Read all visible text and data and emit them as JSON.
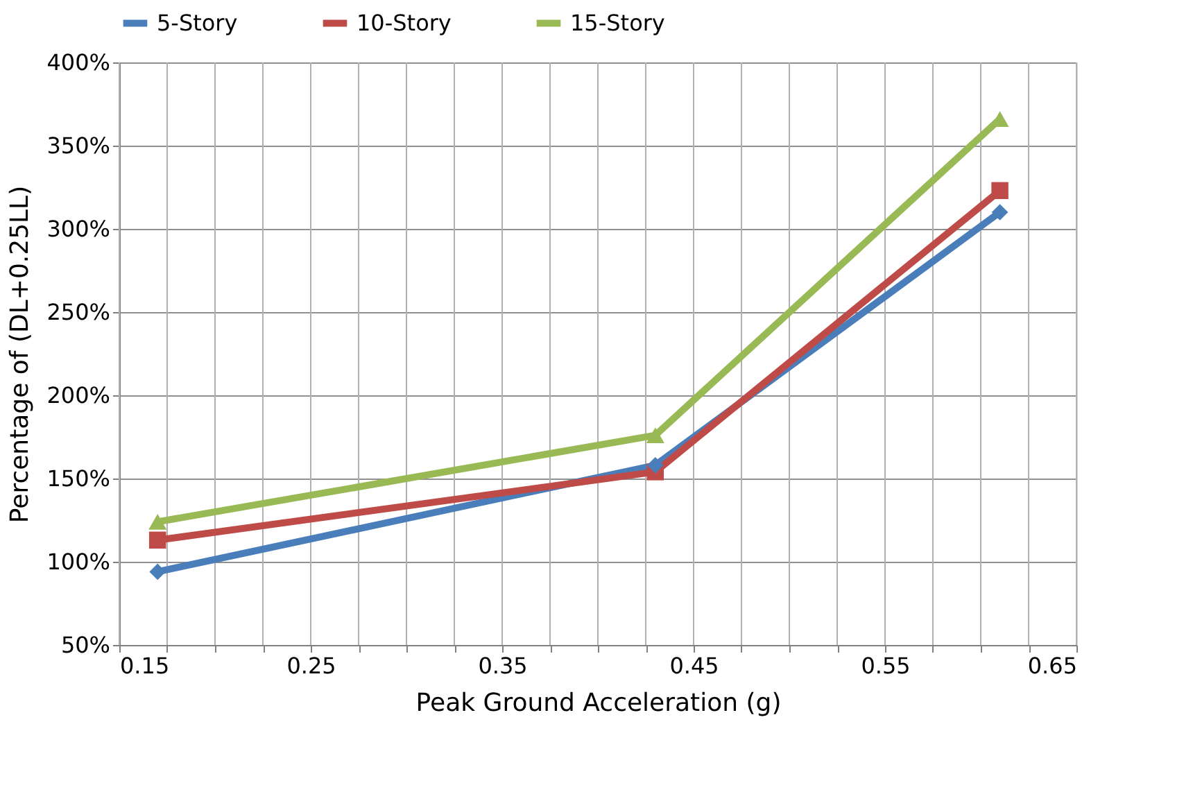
{
  "chart_data": {
    "type": "line",
    "xlabel": "Peak Ground Acceleration (g)",
    "ylabel": "Percentage of (DL+0.25LL)",
    "x": [
      0.17,
      0.43,
      0.61
    ],
    "series": [
      {
        "name": "5-Story",
        "color": "#4a7ebb",
        "marker": "diamond",
        "values": [
          94,
          158,
          310
        ]
      },
      {
        "name": "10-Story",
        "color": "#be4b48",
        "marker": "square",
        "values": [
          113,
          154,
          323
        ]
      },
      {
        "name": "15-Story",
        "color": "#98b954",
        "marker": "triangle",
        "values": [
          124,
          176,
          366
        ]
      }
    ],
    "xlim": [
      0.15,
      0.65
    ],
    "xticks": [
      0.15,
      {
        "value": 0.175,
        "label": null
      },
      {
        "value": 0.2,
        "label": null
      },
      {
        "value": 0.225,
        "label": null
      },
      0.25,
      {
        "value": 0.275,
        "label": null
      },
      {
        "value": 0.3,
        "label": null
      },
      {
        "value": 0.325,
        "label": null
      },
      0.35,
      {
        "value": 0.375,
        "label": null
      },
      {
        "value": 0.4,
        "label": null
      },
      {
        "value": 0.425,
        "label": null
      },
      0.45,
      {
        "value": 0.475,
        "label": null
      },
      {
        "value": 0.5,
        "label": null
      },
      {
        "value": 0.525,
        "label": null
      },
      0.55,
      {
        "value": 0.575,
        "label": null
      },
      {
        "value": 0.6,
        "label": null
      },
      {
        "value": 0.625,
        "label": null
      },
      0.65
    ],
    "ylim": [
      50,
      400
    ],
    "yticks": [
      {
        "value": 50,
        "label": "50%"
      },
      {
        "value": 100,
        "label": "100%"
      },
      {
        "value": 150,
        "label": "150%"
      },
      {
        "value": 200,
        "label": "200%"
      },
      {
        "value": 250,
        "label": "250%"
      },
      {
        "value": 300,
        "label": "300%"
      },
      {
        "value": 350,
        "label": "350%"
      },
      {
        "value": 400,
        "label": "400%"
      }
    ],
    "grid": true,
    "legend": "top",
    "line_style": "solid"
  }
}
